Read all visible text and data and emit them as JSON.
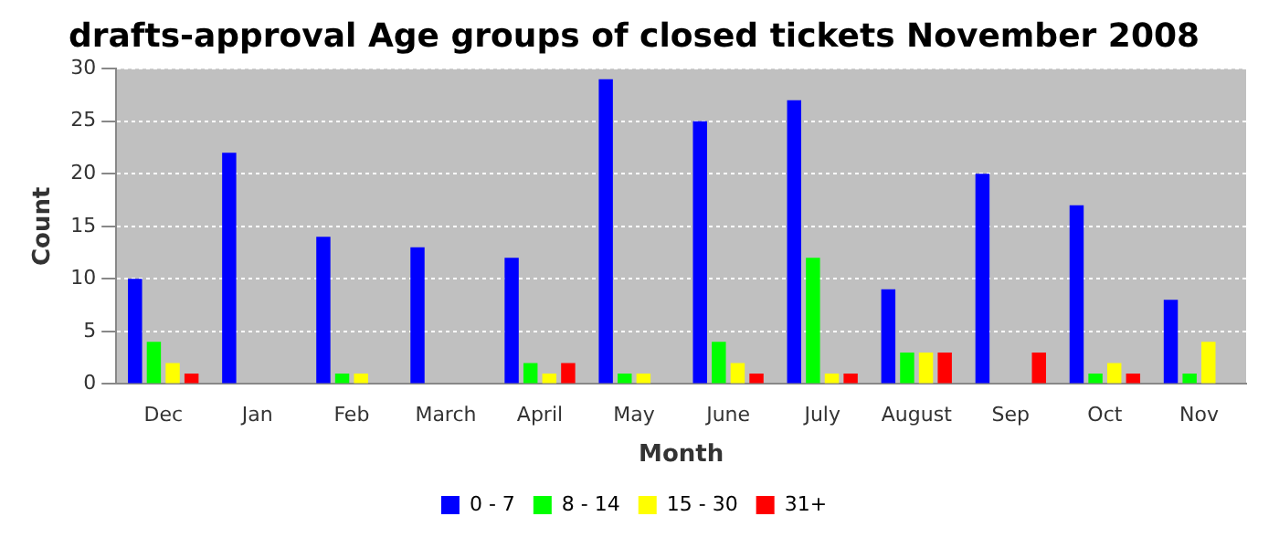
{
  "chart_data": {
    "type": "bar",
    "title": "drafts-approval Age groups of closed tickets November 2008",
    "xlabel": "Month",
    "ylabel": "Count",
    "categories": [
      "Dec",
      "Jan",
      "Feb",
      "March",
      "April",
      "May",
      "June",
      "July",
      "August",
      "Sep",
      "Oct",
      "Nov"
    ],
    "series": [
      {
        "name": "0 - 7",
        "color": "#0000ff",
        "values": [
          10,
          22,
          14,
          13,
          12,
          29,
          25,
          27,
          9,
          20,
          17,
          8
        ]
      },
      {
        "name": "8 - 14",
        "color": "#00ff00",
        "values": [
          4,
          0,
          1,
          0,
          2,
          1,
          4,
          12,
          3,
          0,
          1,
          1
        ]
      },
      {
        "name": "15 - 30",
        "color": "#ffff00",
        "values": [
          2,
          0,
          1,
          0,
          1,
          1,
          2,
          1,
          3,
          0,
          2,
          4
        ]
      },
      {
        "name": "31+",
        "color": "#ff0000",
        "values": [
          1,
          0,
          0,
          0,
          2,
          0,
          1,
          1,
          3,
          3,
          1,
          0
        ]
      }
    ],
    "ylim": [
      0,
      30
    ],
    "yticks": [
      0,
      5,
      10,
      15,
      20,
      25,
      30
    ],
    "grid": "y",
    "legend": "bottom"
  }
}
